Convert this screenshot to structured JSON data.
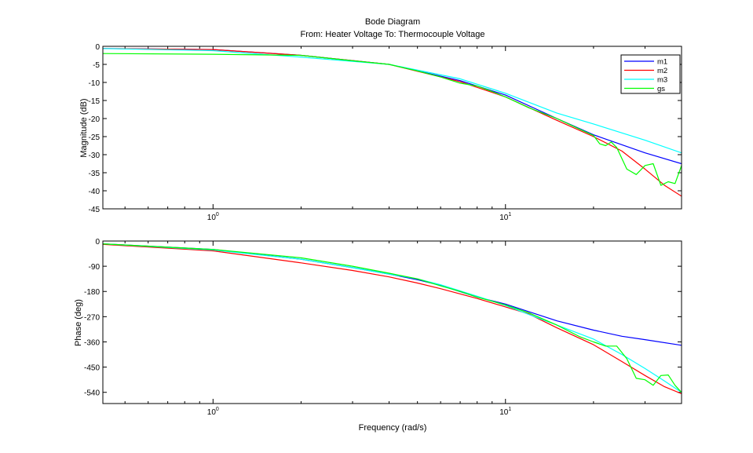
{
  "title": "Bode Diagram",
  "subtitle": "From: Heater Voltage  To: Thermocouple Voltage",
  "xlabel": "Frequency (rad/s)",
  "chart_data": [
    {
      "type": "line",
      "ylabel": "Magnitude (dB)",
      "xscale": "log",
      "xlim": [
        0.42,
        40
      ],
      "ylim": [
        -45,
        0
      ],
      "yticks": [
        0,
        -5,
        -10,
        -15,
        -20,
        -25,
        -30,
        -35,
        -40,
        -45
      ],
      "xticks": [
        {
          "value": 1,
          "base": "10",
          "exp": "0"
        },
        {
          "value": 10,
          "base": "10",
          "exp": "1"
        }
      ],
      "legend": {
        "position": "top-right",
        "entries": [
          "m1",
          "m2",
          "m3",
          "gs"
        ]
      },
      "series": [
        {
          "name": "m1",
          "color": "#0000ff",
          "x": [
            0.42,
            1,
            2,
            4,
            7,
            10,
            15,
            20,
            30,
            40
          ],
          "y": [
            -0.6,
            -0.9,
            -2.5,
            -5.0,
            -9.5,
            -13.5,
            -20,
            -24.5,
            -29.5,
            -32.5
          ]
        },
        {
          "name": "m2",
          "color": "#ff0000",
          "x": [
            0.42,
            1,
            2,
            4,
            7,
            10,
            15,
            20,
            25,
            30,
            35,
            40
          ],
          "y": [
            -0.6,
            -0.9,
            -2.5,
            -5.0,
            -9.8,
            -14,
            -20.5,
            -25,
            -29,
            -34,
            -38.5,
            -41.5
          ]
        },
        {
          "name": "m3",
          "color": "#00ffff",
          "x": [
            0.42,
            1,
            2,
            4,
            7,
            10,
            15,
            20,
            30,
            40
          ],
          "y": [
            -0.6,
            -1.2,
            -3.0,
            -5.0,
            -9.0,
            -13.0,
            -18.5,
            -21.5,
            -26,
            -29.5
          ]
        },
        {
          "name": "gs",
          "color": "#00ff00",
          "x": [
            0.42,
            1,
            2,
            3,
            4,
            5,
            6,
            7,
            8,
            9,
            10,
            12,
            15,
            18,
            20,
            21,
            22,
            23,
            24,
            26,
            28,
            30,
            32,
            34,
            36,
            38,
            40
          ],
          "y": [
            -2.0,
            -2.2,
            -2.5,
            -4.0,
            -5.0,
            -6.8,
            -8.5,
            -10.2,
            -11.0,
            -12.5,
            -14.0,
            -17.0,
            -20.0,
            -23.0,
            -24.7,
            -27.0,
            -27.5,
            -26.5,
            -28.0,
            -34.0,
            -35.5,
            -33.0,
            -32.5,
            -38.5,
            -37.5,
            -38.0,
            -33.0
          ]
        }
      ]
    },
    {
      "type": "line",
      "ylabel": "Phase (deg)",
      "xscale": "log",
      "xlim": [
        0.42,
        40
      ],
      "ylim": [
        -580,
        0
      ],
      "yticks": [
        0,
        -90,
        -180,
        -270,
        -360,
        -450,
        -540
      ],
      "xticks": [
        {
          "value": 1,
          "base": "10",
          "exp": "0"
        },
        {
          "value": 10,
          "base": "10",
          "exp": "1"
        }
      ],
      "series": [
        {
          "name": "m1",
          "color": "#0000ff",
          "x": [
            0.42,
            1,
            2,
            3,
            4,
            5,
            6,
            8,
            10,
            12,
            15,
            20,
            25,
            30,
            40
          ],
          "y": [
            -10,
            -30,
            -65,
            -95,
            -118,
            -138,
            -158,
            -200,
            -225,
            -252,
            -285,
            -318,
            -340,
            -352,
            -372
          ]
        },
        {
          "name": "m2",
          "color": "#ff0000",
          "x": [
            0.42,
            1,
            2,
            3,
            4,
            5,
            6,
            8,
            10,
            12,
            15,
            20,
            25,
            30,
            35,
            40
          ],
          "y": [
            -12,
            -35,
            -78,
            -105,
            -128,
            -150,
            -170,
            -205,
            -235,
            -260,
            -310,
            -370,
            -430,
            -480,
            -520,
            -545
          ]
        },
        {
          "name": "m3",
          "color": "#00ffff",
          "x": [
            0.42,
            1,
            2,
            3,
            4,
            5,
            6,
            8,
            10,
            12,
            15,
            20,
            25,
            30,
            35,
            40
          ],
          "y": [
            -10,
            -32,
            -65,
            -95,
            -118,
            -135,
            -156,
            -197,
            -230,
            -262,
            -300,
            -350,
            -405,
            -455,
            -500,
            -540
          ]
        },
        {
          "name": "gs",
          "color": "#00ff00",
          "x": [
            0.42,
            1,
            2,
            3,
            4,
            5,
            6,
            7,
            8,
            10,
            12,
            15,
            18,
            20,
            22,
            24,
            26,
            28,
            30,
            32,
            34,
            36,
            38,
            40
          ],
          "y": [
            -10,
            -30,
            -60,
            -90,
            -115,
            -135,
            -160,
            -180,
            -200,
            -228,
            -256,
            -300,
            -342,
            -360,
            -375,
            -375,
            -420,
            -490,
            -495,
            -515,
            -480,
            -478,
            -515,
            -540
          ]
        }
      ]
    }
  ]
}
